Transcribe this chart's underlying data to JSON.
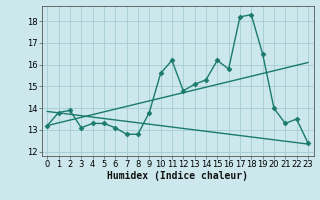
{
  "xlabel": "Humidex (Indice chaleur)",
  "xlim": [
    -0.5,
    23.5
  ],
  "ylim": [
    11.8,
    18.7
  ],
  "yticks": [
    12,
    13,
    14,
    15,
    16,
    17,
    18
  ],
  "xticks": [
    0,
    1,
    2,
    3,
    4,
    5,
    6,
    7,
    8,
    9,
    10,
    11,
    12,
    13,
    14,
    15,
    16,
    17,
    18,
    19,
    20,
    21,
    22,
    23
  ],
  "bg_color": "#cce8ec",
  "grid_color": "#aad0d6",
  "line_color": "#1a7a6e",
  "line1_x": [
    0,
    1,
    2,
    3,
    4,
    5,
    6,
    7,
    8,
    9,
    10,
    11,
    12,
    13,
    14,
    15,
    16,
    17,
    18,
    19,
    20,
    21,
    22,
    23
  ],
  "line1_y": [
    13.2,
    13.8,
    13.9,
    13.1,
    13.3,
    13.3,
    13.1,
    12.8,
    12.8,
    13.8,
    15.6,
    16.2,
    14.8,
    15.1,
    15.3,
    16.2,
    15.8,
    18.2,
    18.3,
    16.5,
    14.0,
    13.3,
    13.5,
    12.4
  ],
  "line2_x": [
    0,
    23
  ],
  "line2_y": [
    13.2,
    16.1
  ],
  "line3_x": [
    0,
    23
  ],
  "line3_y": [
    13.85,
    12.35
  ],
  "tick_fontsize": 6,
  "xlabel_fontsize": 7
}
